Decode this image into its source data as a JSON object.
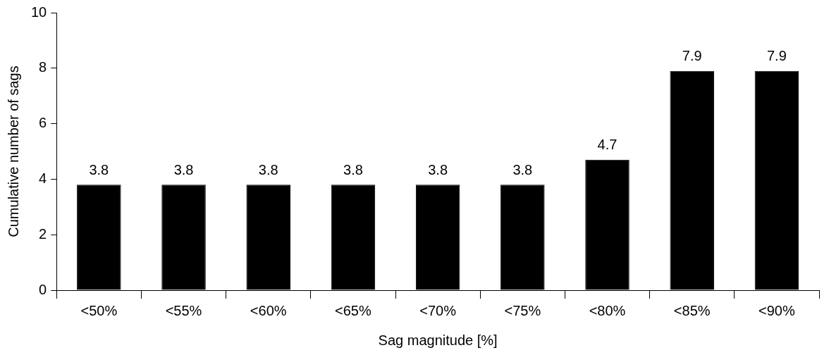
{
  "chart_data": {
    "type": "bar",
    "xlabel": "Sag magnitude [%]",
    "ylabel": "Cumulative number of sags",
    "categories": [
      "<50%",
      "<55%",
      "<60%",
      "<65%",
      "<70%",
      "<75%",
      "<80%",
      "<85%",
      "<90%"
    ],
    "values": [
      3.8,
      3.8,
      3.8,
      3.8,
      3.8,
      3.8,
      4.7,
      7.9,
      7.9
    ],
    "color": "#000000",
    "ylim": [
      0,
      10
    ],
    "yticks": [
      0,
      2,
      4,
      6,
      8,
      10
    ],
    "grid": false,
    "legend": false,
    "data_labels": true
  }
}
